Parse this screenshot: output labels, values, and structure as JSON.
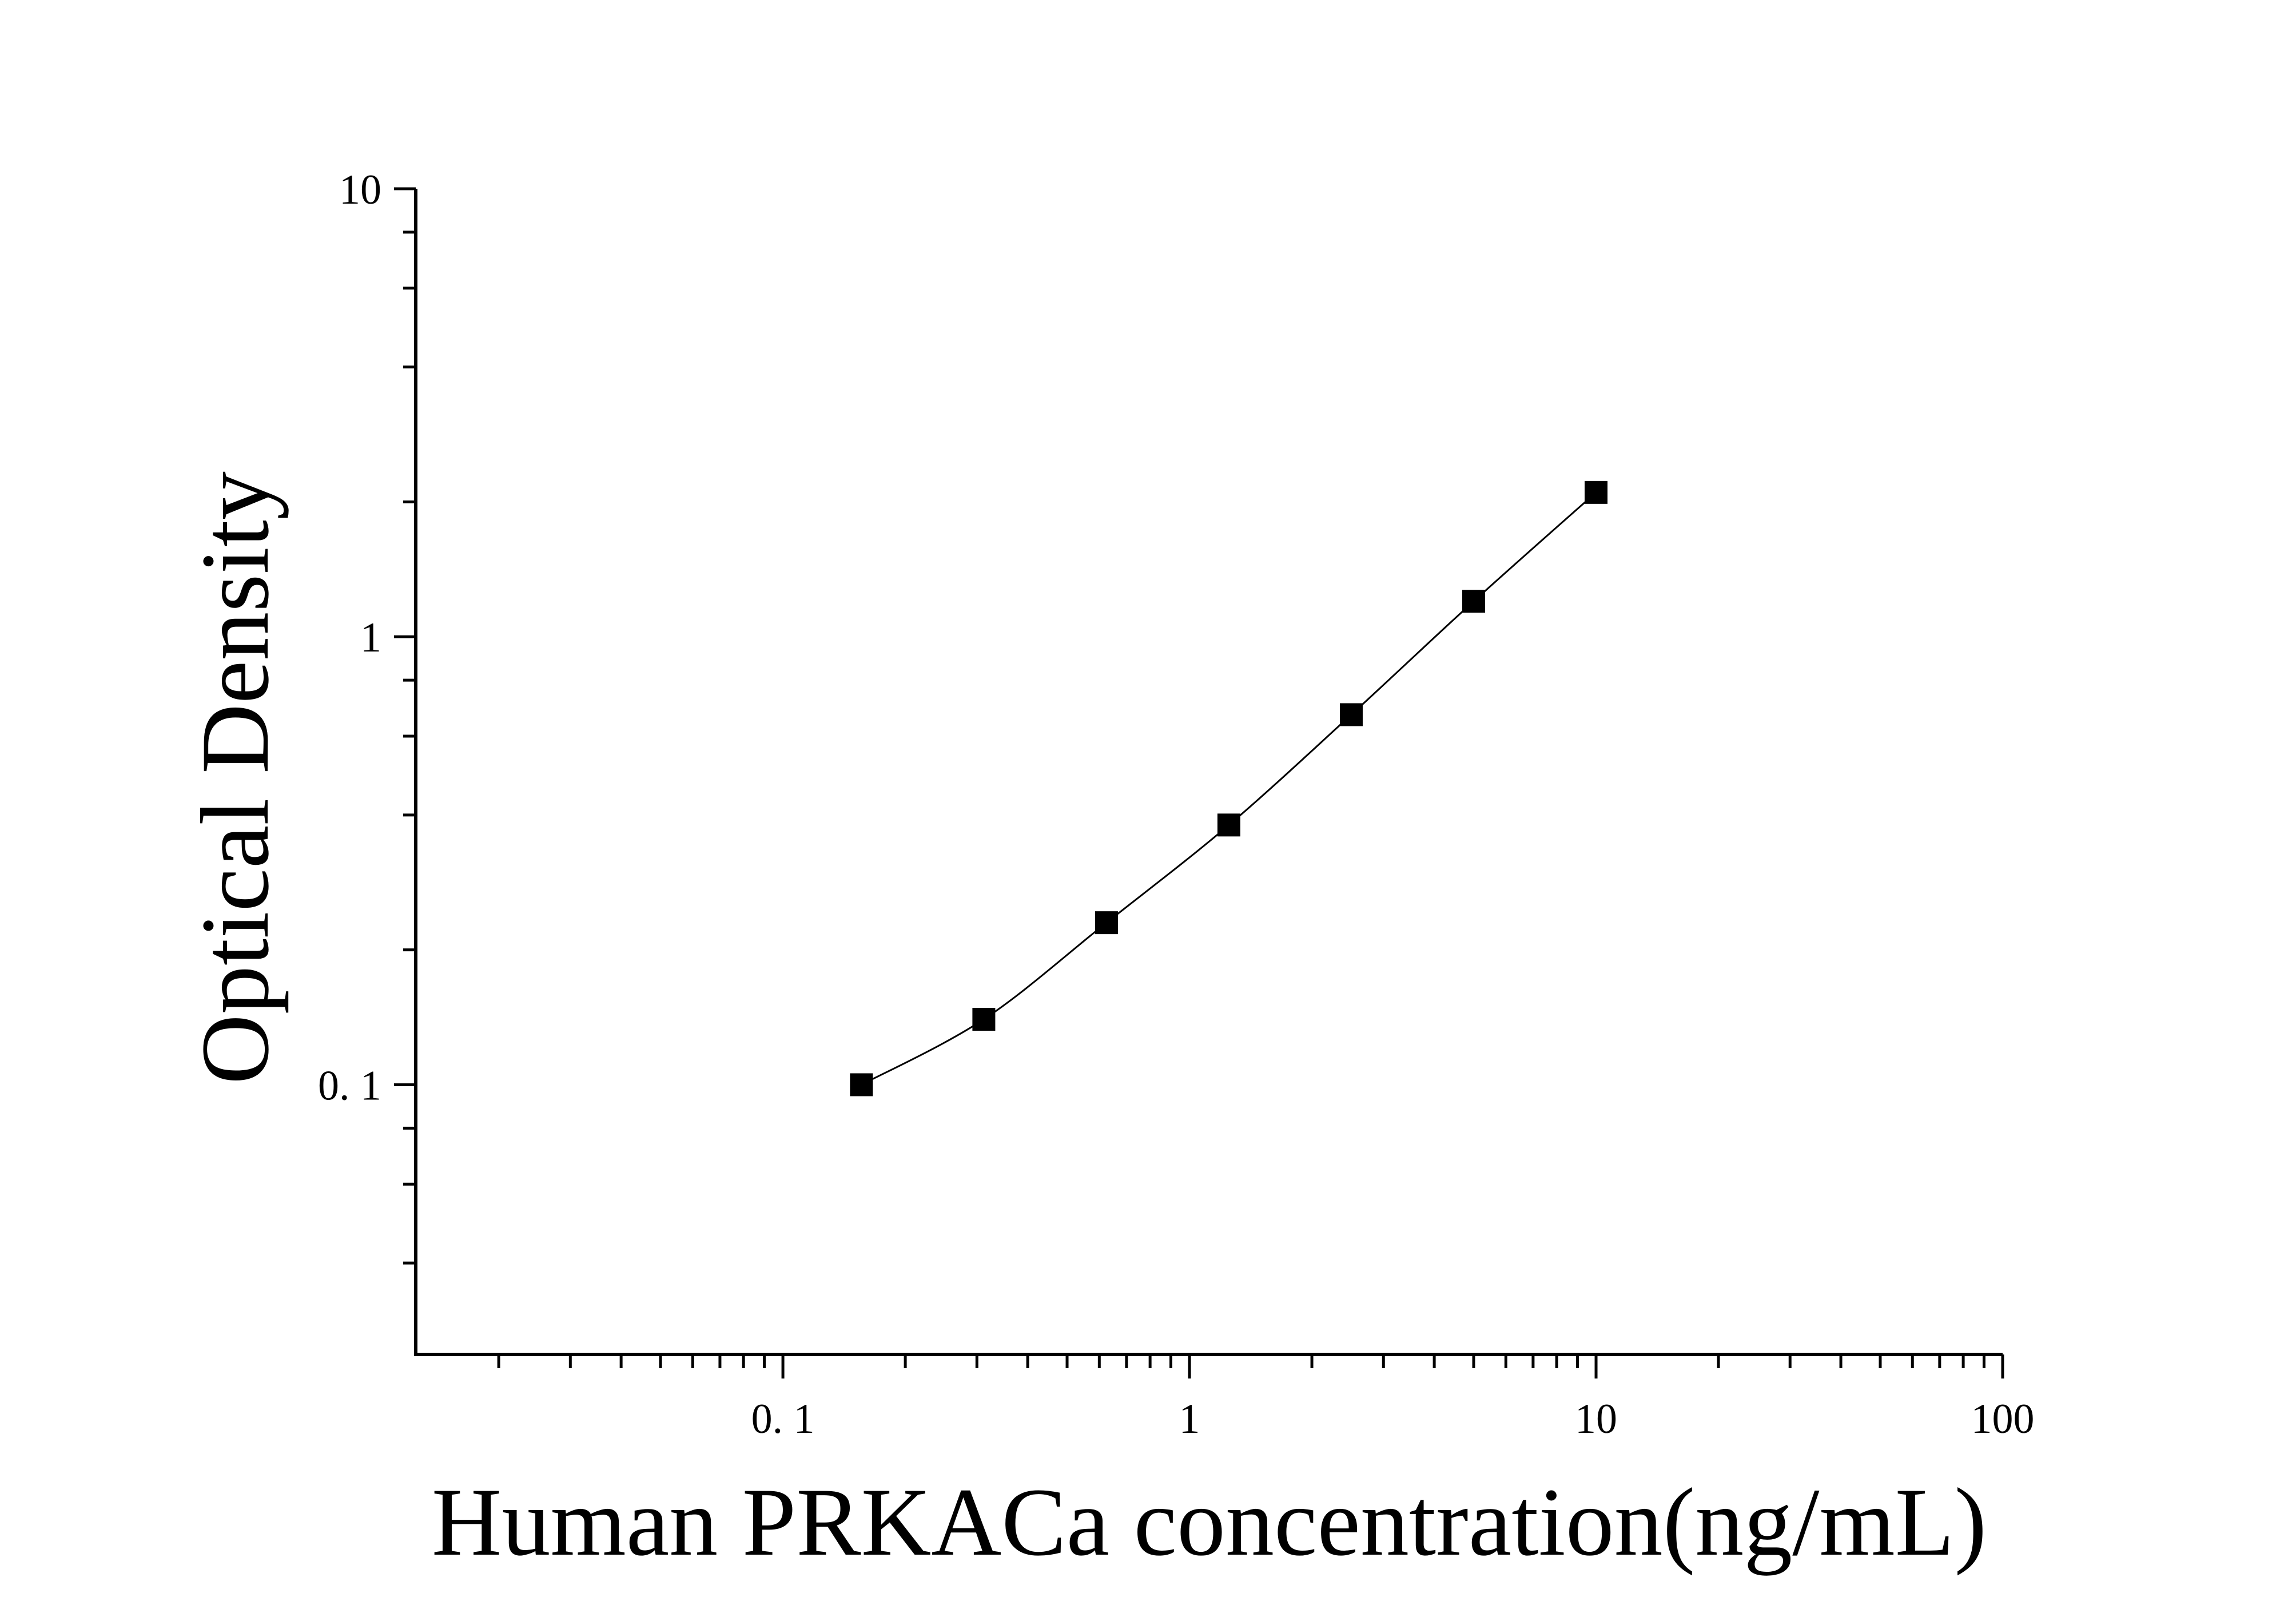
{
  "chart_data": {
    "type": "scatter",
    "xlabel": "Human PRKACa concentration(ng/mL)",
    "ylabel": "Optical Density",
    "x_scale": "log",
    "y_scale": "log",
    "xlim": [
      0.0125,
      100
    ],
    "ylim": [
      0.025,
      10
    ],
    "x_tick_labels": [
      {
        "value": 0.1,
        "label": "0. 1"
      },
      {
        "value": 1,
        "label": "1"
      },
      {
        "value": 10,
        "label": "10"
      },
      {
        "value": 100,
        "label": "100"
      }
    ],
    "y_tick_labels": [
      {
        "value": 0.1,
        "label": "0. 1"
      },
      {
        "value": 1,
        "label": "1"
      },
      {
        "value": 10,
        "label": "10"
      }
    ],
    "grid": false,
    "legend": "none",
    "marker": "square",
    "color": "#000000",
    "x": [
      0.156,
      0.312,
      0.625,
      1.25,
      2.5,
      5,
      10
    ],
    "y": [
      0.1,
      0.14,
      0.23,
      0.38,
      0.67,
      1.2,
      2.1
    ],
    "fit_line": true
  }
}
